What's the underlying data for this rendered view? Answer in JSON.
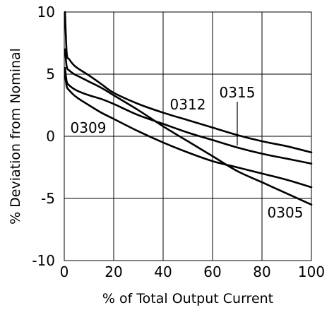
{
  "chart_data": {
    "type": "line",
    "xlabel": "% of Total Output Current",
    "ylabel": "% Deviation from Nominal",
    "xlim": [
      0,
      100
    ],
    "ylim": [
      -10,
      10
    ],
    "x_ticks": [
      "0",
      "20",
      "40",
      "60",
      "80",
      "100"
    ],
    "y_ticks": [
      "10",
      "5",
      "0",
      "-5",
      "-10"
    ],
    "grid": true,
    "line_color": "#000000",
    "series": [
      {
        "name": "0305",
        "x": [
          0.3,
          1,
          2,
          4,
          6,
          10,
          15,
          20,
          30,
          40,
          50,
          60,
          70,
          80,
          90,
          100
        ],
        "y": [
          7.0,
          5.6,
          5.3,
          5.0,
          4.8,
          4.4,
          3.9,
          3.3,
          2.1,
          0.8,
          -0.4,
          -1.6,
          -2.8,
          -3.7,
          -4.6,
          -5.5
        ]
      },
      {
        "name": "0309",
        "x": [
          0.3,
          1,
          2,
          4,
          6,
          10,
          15,
          20,
          30,
          40,
          50,
          60,
          70,
          80,
          90,
          100
        ],
        "y": [
          5.0,
          4.0,
          3.7,
          3.3,
          3.0,
          2.5,
          1.9,
          1.4,
          0.4,
          -0.5,
          -1.3,
          -2.0,
          -2.5,
          -3.0,
          -3.5,
          -4.1
        ]
      },
      {
        "name": "0312",
        "x": [
          0.3,
          1,
          2,
          4,
          6,
          10,
          15,
          20,
          30,
          40,
          50,
          60,
          70,
          80,
          90,
          100
        ],
        "y": [
          5.5,
          4.4,
          4.1,
          3.8,
          3.6,
          3.3,
          3.0,
          2.6,
          1.7,
          1.0,
          0.3,
          -0.3,
          -0.9,
          -1.4,
          -1.8,
          -2.2
        ]
      },
      {
        "name": "0315",
        "x": [
          0.3,
          1,
          2,
          4,
          6,
          10,
          15,
          20,
          30,
          40,
          50,
          60,
          70,
          80,
          90,
          100
        ],
        "y": [
          10.0,
          6.7,
          6.2,
          5.7,
          5.4,
          4.9,
          4.2,
          3.5,
          2.6,
          1.9,
          1.3,
          0.7,
          0.1,
          -0.4,
          -0.8,
          -1.3
        ]
      }
    ],
    "labels": [
      {
        "series": "0305",
        "text": "0305"
      },
      {
        "series": "0309",
        "text": "0309"
      },
      {
        "series": "0312",
        "text": "0312"
      },
      {
        "series": "0315",
        "text": "0315"
      }
    ]
  }
}
